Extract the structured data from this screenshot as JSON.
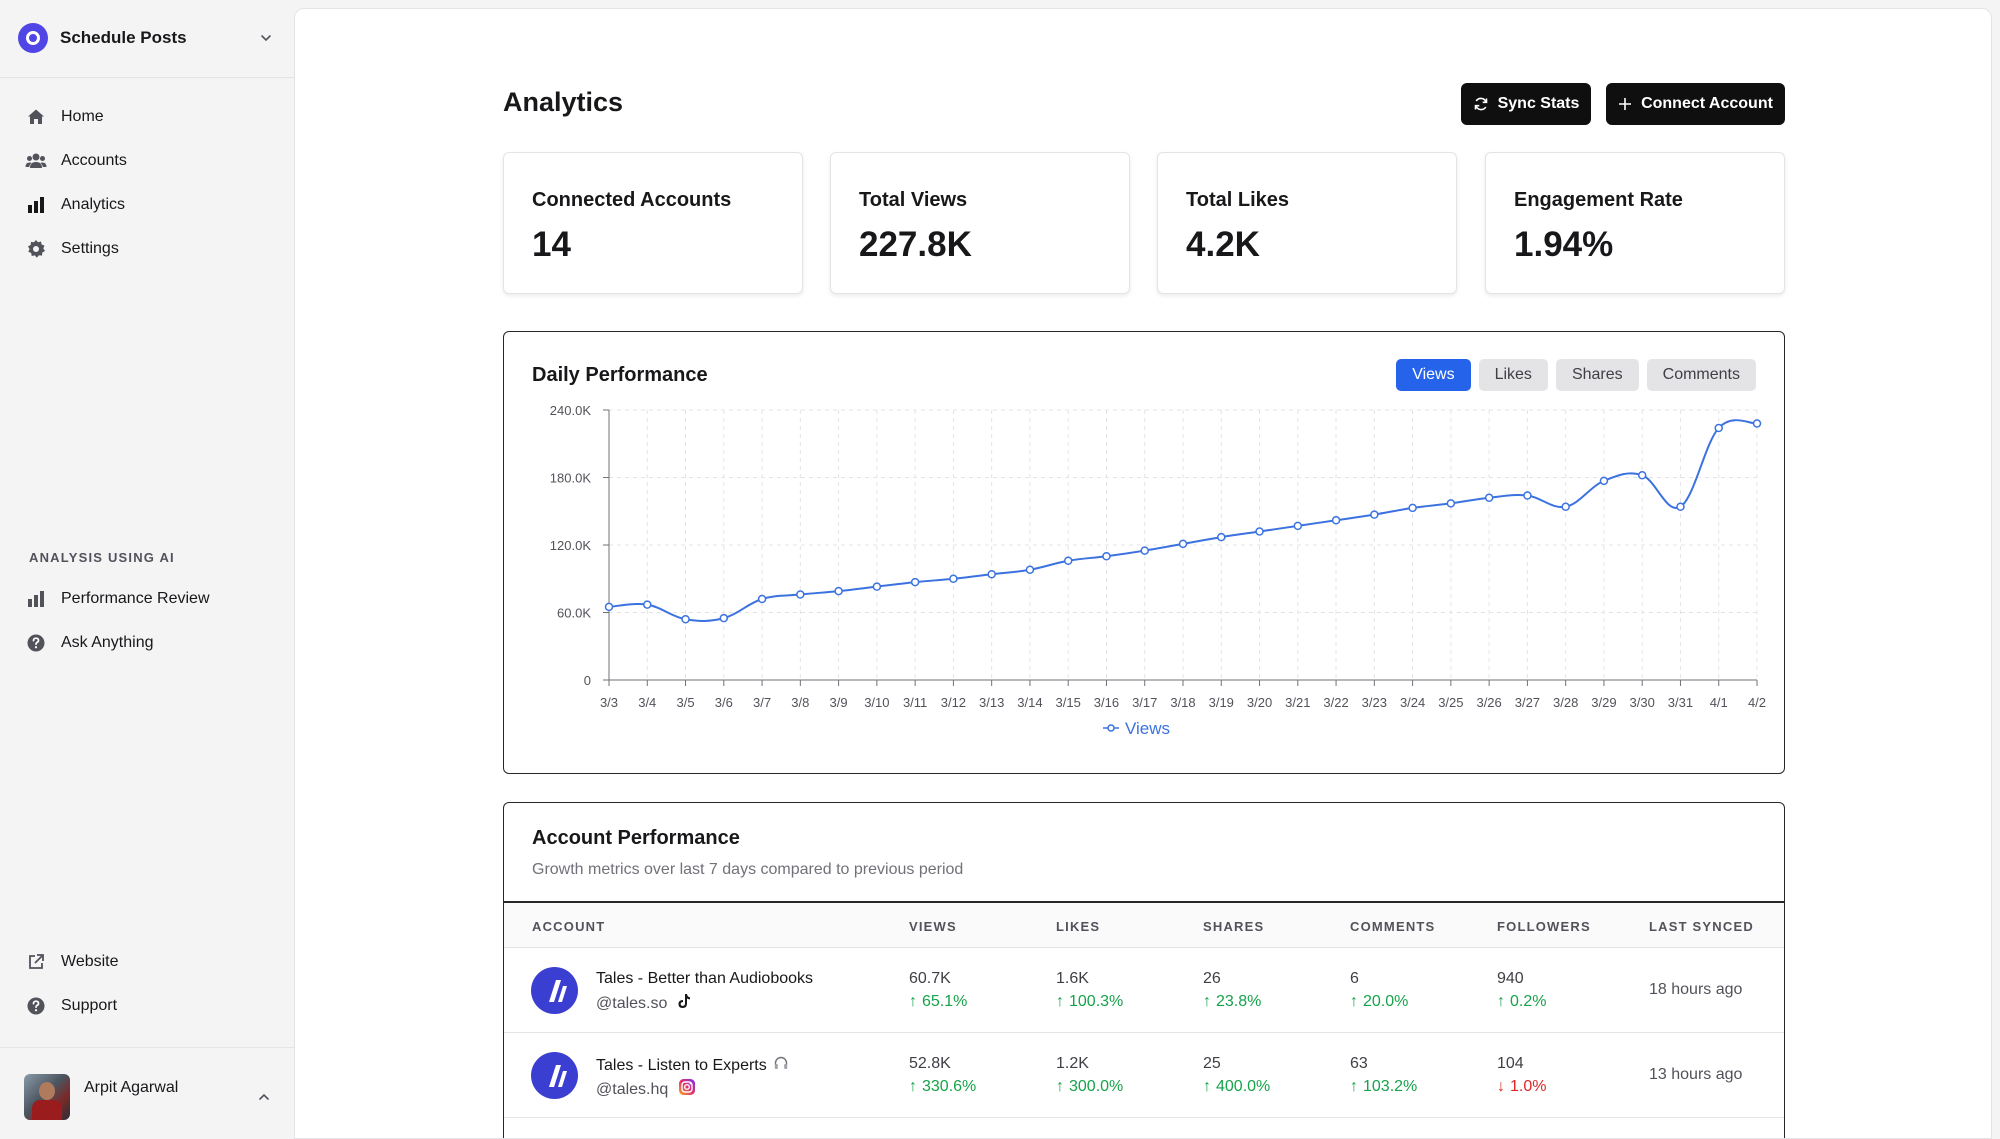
{
  "sidebar": {
    "workspace_name": "Schedule Posts",
    "nav": [
      {
        "label": "Home",
        "icon": "home-icon"
      },
      {
        "label": "Accounts",
        "icon": "users-icon"
      },
      {
        "label": "Analytics",
        "icon": "bar-chart-icon"
      },
      {
        "label": "Settings",
        "icon": "gear-icon"
      }
    ],
    "ai_section_label": "ANALYSIS USING AI",
    "ai_nav": [
      {
        "label": "Performance Review",
        "icon": "bar-chart-icon"
      },
      {
        "label": "Ask Anything",
        "icon": "help-circle-icon"
      }
    ],
    "footer_nav": [
      {
        "label": "Website",
        "icon": "external-link-icon"
      },
      {
        "label": "Support",
        "icon": "help-circle-icon"
      }
    ],
    "user_name": "Arpit Agarwal"
  },
  "header": {
    "title": "Analytics",
    "sync_label": "Sync Stats",
    "connect_label": "Connect Account"
  },
  "stats": [
    {
      "label": "Connected Accounts",
      "value": "14"
    },
    {
      "label": "Total Views",
      "value": "227.8K"
    },
    {
      "label": "Total Likes",
      "value": "4.2K"
    },
    {
      "label": "Engagement Rate",
      "value": "1.94%"
    }
  ],
  "daily": {
    "title": "Daily Performance",
    "tabs": [
      "Views",
      "Likes",
      "Shares",
      "Comments"
    ],
    "active_tab": "Views"
  },
  "chart_data": {
    "type": "line",
    "categories": [
      "3/3",
      "3/4",
      "3/5",
      "3/6",
      "3/7",
      "3/8",
      "3/9",
      "3/10",
      "3/11",
      "3/12",
      "3/13",
      "3/14",
      "3/15",
      "3/16",
      "3/17",
      "3/18",
      "3/19",
      "3/20",
      "3/21",
      "3/22",
      "3/23",
      "3/24",
      "3/25",
      "3/26",
      "3/27",
      "3/28",
      "3/29",
      "3/30",
      "3/31",
      "4/1",
      "4/2"
    ],
    "series": [
      {
        "name": "Views",
        "color": "#3b72e0",
        "values": [
          65000,
          67000,
          54000,
          55000,
          72000,
          76000,
          79000,
          83000,
          87000,
          90000,
          94000,
          98000,
          106000,
          110000,
          115000,
          121000,
          127000,
          132000,
          137000,
          142000,
          147000,
          153000,
          157000,
          162000,
          164000,
          154000,
          177000,
          182000,
          154000,
          224000,
          228000
        ]
      }
    ],
    "yticks": [
      "0",
      "60.0K",
      "120.0K",
      "180.0K",
      "240.0K"
    ],
    "ytick_values": [
      0,
      60000,
      120000,
      180000,
      240000
    ],
    "ylim": [
      0,
      240000
    ],
    "legend_position": "bottom",
    "grid": true
  },
  "account_perf": {
    "title": "Account Performance",
    "subtitle": "Growth metrics over last 7 days compared to previous period",
    "columns": [
      "ACCOUNT",
      "VIEWS",
      "LIKES",
      "SHARES",
      "COMMENTS",
      "FOLLOWERS",
      "LAST SYNCED"
    ],
    "rows": [
      {
        "name": "Tales - Better than Audiobooks",
        "handle": "@tales.so",
        "platform_icon": "tiktok-icon",
        "views": "60.7K",
        "views_chg": "65.1%",
        "views_dir": "up",
        "likes": "1.6K",
        "likes_chg": "100.3%",
        "likes_dir": "up",
        "shares": "26",
        "shares_chg": "23.8%",
        "shares_dir": "up",
        "comments": "6",
        "comments_chg": "20.0%",
        "comments_dir": "up",
        "followers": "940",
        "followers_chg": "0.2%",
        "followers_dir": "up",
        "synced": "18 hours ago"
      },
      {
        "name": "Tales - Listen to Experts",
        "handle": "@tales.hq",
        "platform_icon": "instagram-icon",
        "views": "52.8K",
        "views_chg": "330.6%",
        "views_dir": "up",
        "likes": "1.2K",
        "likes_chg": "300.0%",
        "likes_dir": "up",
        "shares": "25",
        "shares_chg": "400.0%",
        "shares_dir": "up",
        "comments": "63",
        "comments_chg": "103.2%",
        "comments_dir": "up",
        "followers": "104",
        "followers_chg": "1.0%",
        "followers_dir": "down",
        "synced": "13 hours ago"
      }
    ]
  }
}
